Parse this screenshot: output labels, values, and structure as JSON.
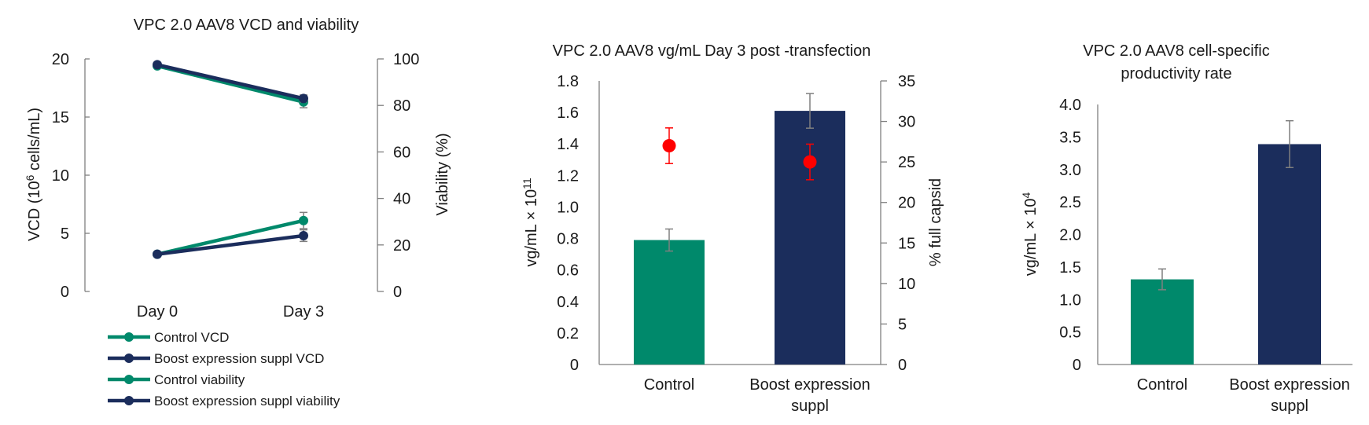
{
  "colors": {
    "green": "#00896b",
    "navy": "#1b2d5c",
    "red": "#ff0000",
    "error": "#7f7f7f"
  },
  "chart_data": [
    {
      "type": "line",
      "title": "VPC 2.0 AAV8 VCD and viability",
      "categories": [
        "Day 0",
        "Day 3"
      ],
      "ylabel_prefix": "VCD (10",
      "ylabel_sup": "6",
      "ylabel_suffix": " cells/mL)",
      "ylim": [
        0,
        20
      ],
      "yticks": [
        "0",
        "5",
        "10",
        "15",
        "20"
      ],
      "y2label": "Viability (%)",
      "y2lim": [
        0,
        100
      ],
      "y2ticks": [
        "0",
        "20",
        "40",
        "60",
        "80",
        "100"
      ],
      "legend_position": "bottom",
      "series": [
        {
          "name": "Control VCD",
          "axis": "left",
          "color": "#00896b",
          "values": [
            3.2,
            6.1
          ],
          "errors": [
            0.2,
            0.7
          ]
        },
        {
          "name": "Boost expression suppl VCD",
          "axis": "left",
          "color": "#1b2d5c",
          "values": [
            3.2,
            4.8
          ],
          "errors": [
            0.2,
            0.5
          ]
        },
        {
          "name": "Control viability",
          "axis": "right",
          "color": "#00896b",
          "values": [
            97,
            81.5
          ],
          "errors": [
            0.8,
            2.5
          ]
        },
        {
          "name": "Boost expression suppl viability",
          "axis": "right",
          "color": "#1b2d5c",
          "values": [
            97.5,
            83
          ],
          "errors": [
            0.8,
            1.5
          ]
        }
      ]
    },
    {
      "type": "bar",
      "title": "VPC 2.0 AAV8 vg/mL Day 3 post -transfection",
      "categories": [
        "Control",
        "Boost expression suppl"
      ],
      "values": [
        0.79,
        1.61
      ],
      "errors": [
        0.07,
        0.11
      ],
      "bar_colors": [
        "#00896b",
        "#1b2d5c"
      ],
      "ylabel_prefix": "vg/mL × 10",
      "ylabel_sup": "11",
      "ylim": [
        0,
        1.8
      ],
      "yticks": [
        "0",
        "0.2",
        "0.4",
        "0.6",
        "0.8",
        "1.0",
        "1.2",
        "1.4",
        "1.6",
        "1.8"
      ],
      "y2label": "% full capsid",
      "y2lim": [
        0,
        35
      ],
      "y2ticks": [
        "0",
        "5",
        "10",
        "15",
        "20",
        "25",
        "30",
        "35"
      ],
      "overlay": {
        "values": [
          27,
          25
        ],
        "errors": [
          2.2,
          2.2
        ],
        "color": "#ff0000"
      }
    },
    {
      "type": "bar",
      "title": "VPC 2.0 AAV8 cell-specific productivity rate",
      "categories": [
        "Control",
        "Boost expression suppl"
      ],
      "values": [
        1.31,
        3.39
      ],
      "errors": [
        0.16,
        0.36
      ],
      "bar_colors": [
        "#00896b",
        "#1b2d5c"
      ],
      "ylabel_prefix": "vg/mL × 10",
      "ylabel_sup": "4",
      "ylim": [
        0,
        4.0
      ],
      "yticks": [
        "0",
        "0.5",
        "1.0",
        "1.5",
        "2.0",
        "2.5",
        "3.0",
        "3.5",
        "4.0"
      ]
    }
  ]
}
